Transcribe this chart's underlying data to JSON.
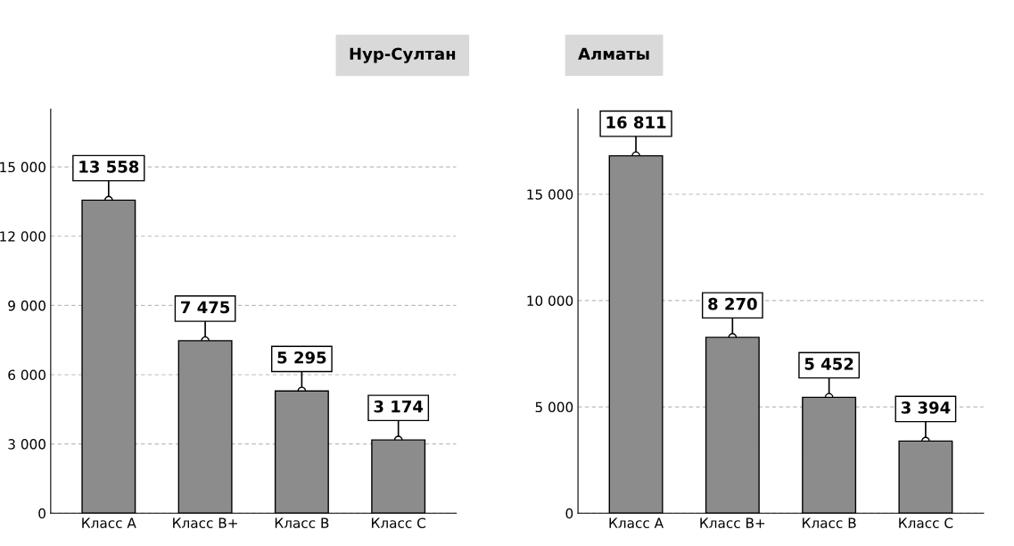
{
  "chart_data": [
    {
      "type": "bar",
      "title": "Нур-Султан",
      "categories": [
        "Класс A",
        "Класс B+",
        "Класс B",
        "Класс C"
      ],
      "values": [
        13558,
        7475,
        5295,
        3174
      ],
      "value_labels": [
        "13 558",
        "7 475",
        "5 295",
        "3 174"
      ],
      "color": "#8c8c8c",
      "ylim": [
        0,
        17500
      ],
      "yticks": [
        {
          "value": 0,
          "label": "0"
        },
        {
          "value": 3000,
          "label": "3 000"
        },
        {
          "value": 6000,
          "label": "6 000"
        },
        {
          "value": 9000,
          "label": "9 000"
        },
        {
          "value": 12000,
          "label": "12 000"
        },
        {
          "value": 15000,
          "label": "15 000"
        }
      ],
      "grid": "y"
    },
    {
      "type": "bar",
      "title": "Алматы",
      "categories": [
        "Класс A",
        "Класс B+",
        "Класс B",
        "Класс C"
      ],
      "values": [
        16811,
        8270,
        5452,
        3394
      ],
      "value_labels": [
        "16 811",
        "8 270",
        "5 452",
        "3 394"
      ],
      "color": "#8c8c8c",
      "ylim": [
        0,
        19000
      ],
      "yticks": [
        {
          "value": 0,
          "label": "0"
        },
        {
          "value": 5000,
          "label": "5 000"
        },
        {
          "value": 10000,
          "label": "10 000"
        },
        {
          "value": 15000,
          "label": "15 000"
        }
      ],
      "grid": "y"
    }
  ]
}
